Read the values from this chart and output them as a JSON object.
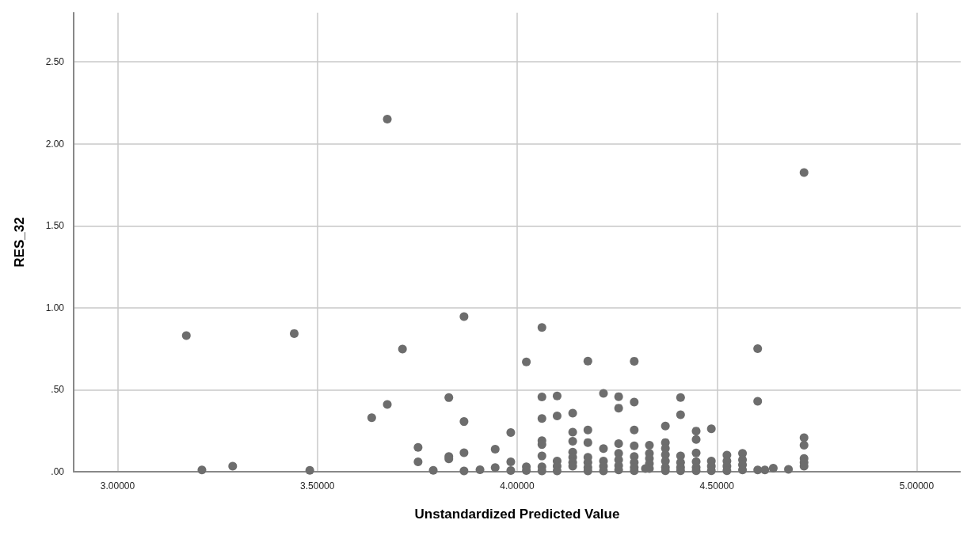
{
  "chart_data": {
    "type": "scatter",
    "xlabel": "Unstandardized Predicted Value",
    "ylabel": "RES_32",
    "xlim": [
      2.89,
      5.11
    ],
    "ylim": [
      0,
      2.8
    ],
    "xticks": [
      {
        "value": 3,
        "label": "3.00000"
      },
      {
        "value": 3.5,
        "label": "3.50000"
      },
      {
        "value": 4,
        "label": "4.00000"
      },
      {
        "value": 4.5,
        "label": "4.50000"
      },
      {
        "value": 5,
        "label": "5.00000"
      }
    ],
    "yticks": [
      {
        "value": 0,
        "label": ".00"
      },
      {
        "value": 0.5,
        "label": ".50"
      },
      {
        "value": 1,
        "label": "1.00"
      },
      {
        "value": 1.5,
        "label": "1.50"
      },
      {
        "value": 2,
        "label": "2.00"
      },
      {
        "value": 2.5,
        "label": "2.50"
      }
    ],
    "grid": true,
    "marker": "circle",
    "series": [
      {
        "color": "#6d6d6d",
        "x": [
          3.172,
          3.211,
          3.288,
          3.442,
          3.481,
          3.636,
          3.675,
          3.675,
          3.713,
          3.752,
          3.752,
          3.79,
          3.829,
          3.829,
          3.829,
          3.867,
          3.867,
          3.867,
          3.867,
          3.907,
          3.945,
          3.945,
          3.984,
          3.984,
          3.984,
          4.023,
          4.023,
          4.023,
          4.062,
          4.062,
          4.062,
          4.062,
          4.062,
          4.062,
          4.062,
          4.062,
          4.1,
          4.1,
          4.1,
          4.1,
          4.1,
          4.139,
          4.139,
          4.139,
          4.139,
          4.139,
          4.139,
          4.139,
          4.177,
          4.177,
          4.177,
          4.177,
          4.177,
          4.177,
          4.177,
          4.216,
          4.216,
          4.216,
          4.216,
          4.216,
          4.254,
          4.254,
          4.254,
          4.254,
          4.254,
          4.254,
          4.254,
          4.293,
          4.293,
          4.293,
          4.293,
          4.293,
          4.293,
          4.293,
          4.293,
          4.331,
          4.331,
          4.331,
          4.331,
          4.331,
          4.321,
          4.371,
          4.371,
          4.371,
          4.371,
          4.371,
          4.371,
          4.371,
          4.409,
          4.409,
          4.409,
          4.409,
          4.409,
          4.409,
          4.448,
          4.448,
          4.448,
          4.448,
          4.448,
          4.448,
          4.486,
          4.486,
          4.486,
          4.486,
          4.525,
          4.525,
          4.525,
          4.525,
          4.564,
          4.564,
          4.564,
          4.564,
          4.602,
          4.602,
          4.602,
          4.62,
          4.641,
          4.679,
          4.718,
          4.718,
          4.718,
          4.718,
          4.718,
          4.718
        ],
        "values": [
          0.83,
          0.011,
          0.034,
          0.843,
          0.008,
          0.33,
          0.41,
          2.151,
          0.748,
          0.148,
          0.06,
          0.008,
          0.452,
          0.093,
          0.078,
          0.946,
          0.306,
          0.116,
          0.005,
          0.012,
          0.138,
          0.025,
          0.239,
          0.06,
          0.007,
          0.67,
          0.03,
          0.007,
          0.88,
          0.456,
          0.325,
          0.19,
          0.166,
          0.096,
          0.03,
          0.005,
          0.462,
          0.34,
          0.065,
          0.034,
          0.005,
          0.357,
          0.241,
          0.186,
          0.12,
          0.088,
          0.057,
          0.034,
          0.675,
          0.255,
          0.178,
          0.088,
          0.057,
          0.026,
          0.005,
          0.478,
          0.141,
          0.065,
          0.034,
          0.005,
          0.458,
          0.388,
          0.171,
          0.112,
          0.073,
          0.037,
          0.011,
          0.674,
          0.425,
          0.255,
          0.158,
          0.093,
          0.057,
          0.026,
          0.006,
          0.162,
          0.112,
          0.081,
          0.05,
          0.019,
          0.019,
          0.279,
          0.178,
          0.143,
          0.104,
          0.065,
          0.026,
          0.006,
          0.453,
          0.348,
          0.096,
          0.057,
          0.026,
          0.006,
          0.248,
          0.197,
          0.115,
          0.062,
          0.026,
          0.006,
          0.262,
          0.065,
          0.034,
          0.006,
          0.101,
          0.065,
          0.034,
          0.006,
          0.112,
          0.073,
          0.042,
          0.011,
          0.751,
          0.43,
          0.011,
          0.011,
          0.022,
          0.014,
          1.825,
          0.208,
          0.162,
          0.081,
          0.057,
          0.034
        ]
      }
    ]
  }
}
